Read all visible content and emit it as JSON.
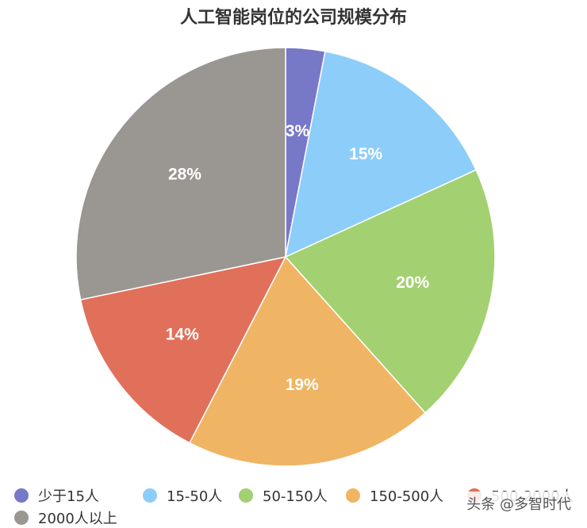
{
  "chart_data": {
    "type": "pie",
    "title": "人工智能岗位的公司规模分布",
    "slices": [
      {
        "label": "少于15人",
        "value": 3,
        "display": "3%",
        "color": "#7878c8"
      },
      {
        "label": "15-50人",
        "value": 15,
        "display": "15%",
        "color": "#8ccdfa"
      },
      {
        "label": "50-150人",
        "value": 20,
        "display": "20%",
        "color": "#a3d071"
      },
      {
        "label": "150-500人",
        "value": 19,
        "display": "19%",
        "color": "#efb564"
      },
      {
        "label": "500-2000人",
        "value": 14,
        "display": "14%",
        "color": "#e1705a"
      },
      {
        "label": "2000人以上",
        "value": 28,
        "display": "28%",
        "color": "#9a9692"
      }
    ],
    "legend_position": "bottom"
  },
  "watermark": "头条 @多智时代"
}
